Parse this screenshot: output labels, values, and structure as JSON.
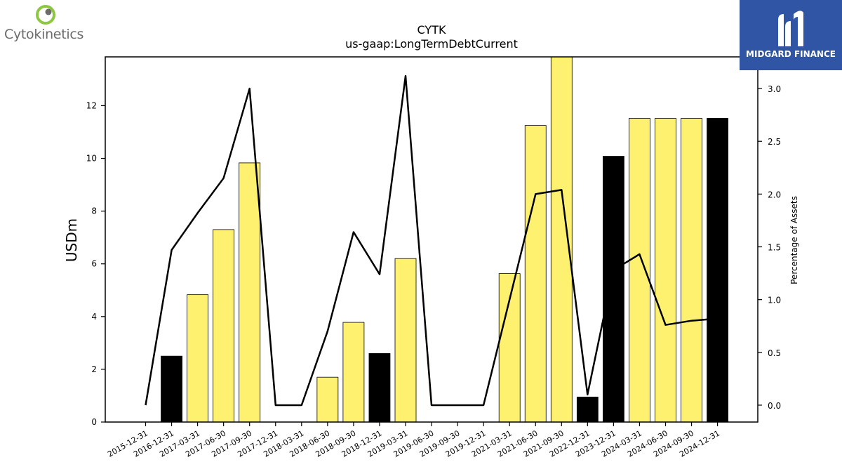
{
  "brand": {
    "left_name": "Cytokinetics",
    "right_name": "MIDGARD FINANCE",
    "left_accent": "#8dc63f",
    "right_bg": "#2f55a4"
  },
  "chart_data": {
    "type": "bar",
    "title": "CYTK",
    "subtitle": "us-gaap:LongTermDebtCurrent",
    "ylabel": "USDm",
    "y2label": "Percentage of Assets",
    "ylim": [
      0,
      13.85
    ],
    "y2lim": [
      -0.16,
      3.3
    ],
    "yticks": [
      0,
      2,
      4,
      6,
      8,
      10,
      12
    ],
    "y2ticks": [
      "0.0",
      "0.5",
      "1.0",
      "1.5",
      "2.0",
      "2.5",
      "3.0"
    ],
    "categories": [
      "2015-12-31",
      "2016-12-31",
      "2017-03-31",
      "2017-06-30",
      "2017-09-30",
      "2017-12-31",
      "2018-03-31",
      "2018-06-30",
      "2018-09-30",
      "2018-12-31",
      "2019-03-31",
      "2019-06-30",
      "2019-09-30",
      "2019-12-31",
      "2021-03-31",
      "2021-06-30",
      "2021-09-30",
      "2022-12-31",
      "2023-12-31",
      "2024-03-31",
      "2024-06-30",
      "2024-09-30",
      "2024-12-31"
    ],
    "values": [
      0,
      2.5,
      4.83,
      7.3,
      9.83,
      0,
      0,
      1.7,
      3.78,
      2.6,
      6.2,
      0,
      0,
      0,
      5.63,
      11.25,
      13.85,
      0.95,
      10.08,
      11.52,
      11.52,
      11.52,
      11.52
    ],
    "bar_colors": [
      "#fff170",
      "#000000",
      "#fff170",
      "#fff170",
      "#fff170",
      "#fff170",
      "#fff170",
      "#fff170",
      "#fff170",
      "#000000",
      "#fff170",
      "#fff170",
      "#fff170",
      "#fff170",
      "#fff170",
      "#fff170",
      "#fff170",
      "#000000",
      "#000000",
      "#fff170",
      "#fff170",
      "#fff170",
      "#000000"
    ],
    "pct_assets": [
      0.0,
      1.47,
      1.82,
      2.15,
      3.0,
      0.0,
      0.0,
      0.7,
      1.64,
      1.24,
      3.12,
      0.0,
      0.0,
      0.0,
      1.0,
      2.0,
      2.04,
      0.1,
      1.28,
      1.43,
      0.76,
      0.8,
      0.82
    ],
    "grid": false
  }
}
